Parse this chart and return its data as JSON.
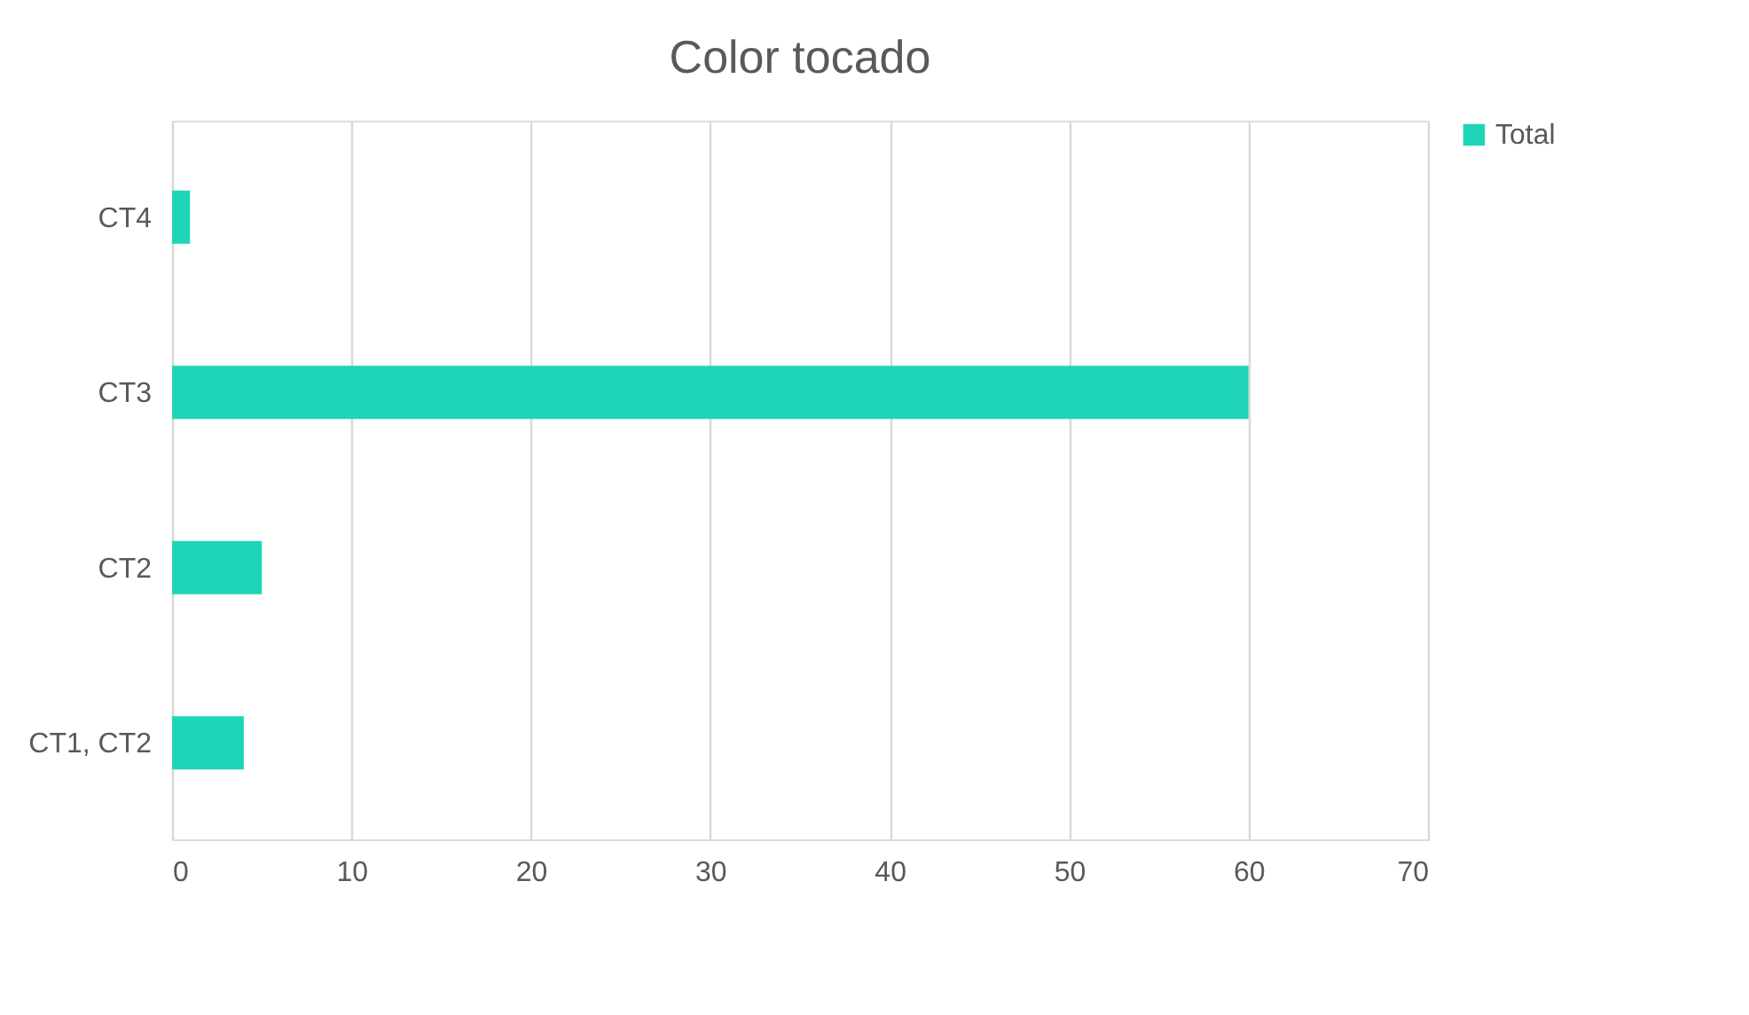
{
  "chart_data": {
    "type": "bar",
    "orientation": "horizontal",
    "title": "Color tocado",
    "categories": [
      "CT4",
      "CT3",
      "CT2",
      "CT1, CT2"
    ],
    "series": [
      {
        "name": "Total",
        "color": "#1fd5b8",
        "values": [
          1,
          60,
          5,
          4
        ]
      }
    ],
    "xlim": [
      0,
      70
    ],
    "xticks": [
      0,
      10,
      20,
      30,
      40,
      50,
      60,
      70
    ],
    "grid": "x",
    "legend": "right"
  }
}
